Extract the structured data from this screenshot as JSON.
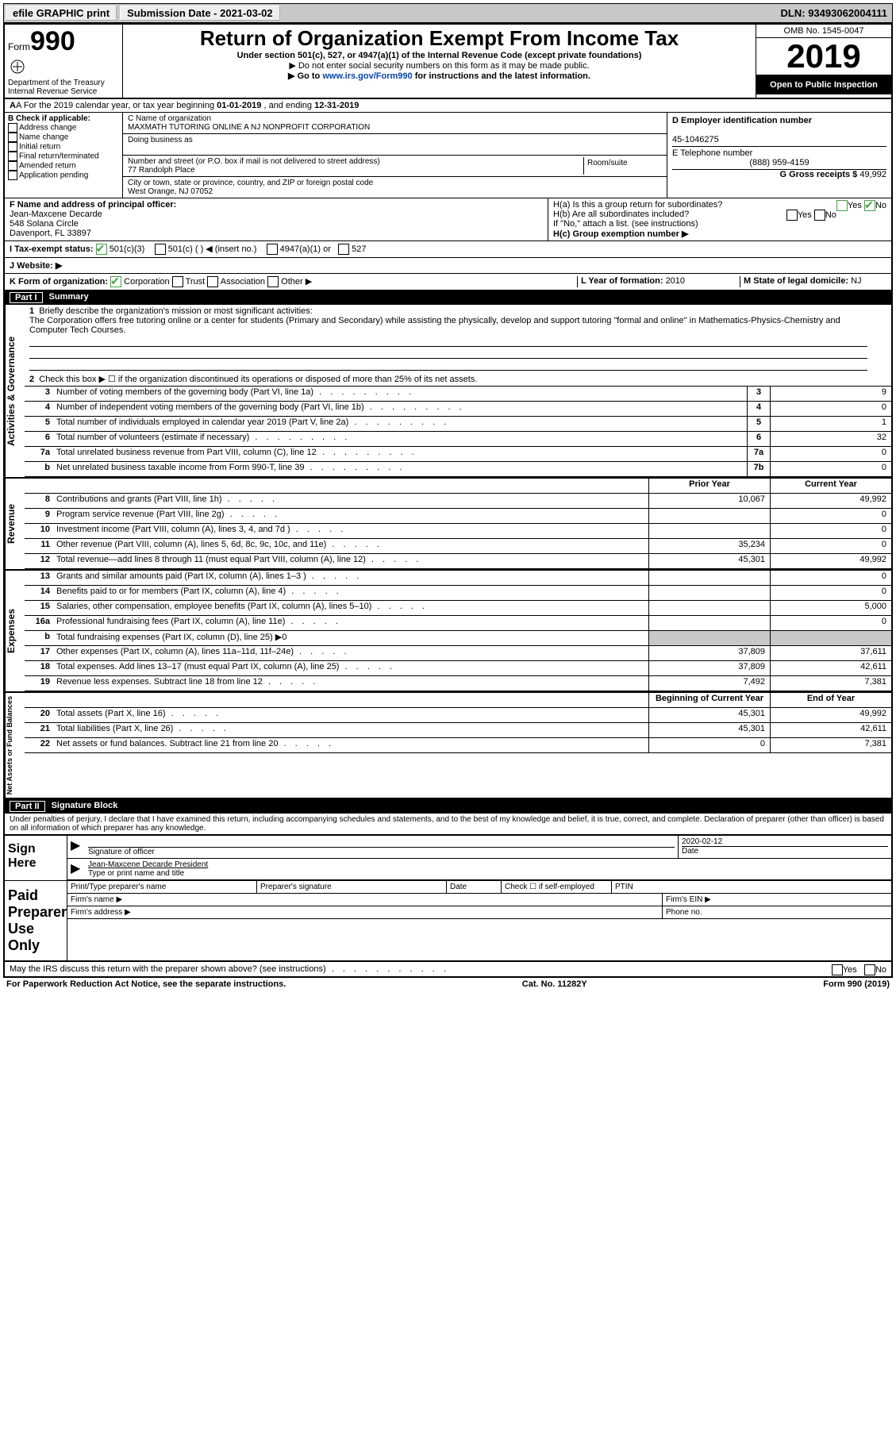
{
  "topbar": {
    "efile": "efile GRAPHIC print",
    "subdate_label": "Submission Date - ",
    "subdate": "2021-03-02",
    "dln_label": "DLN: ",
    "dln": "93493062004111"
  },
  "header": {
    "form_label": "Form",
    "form_number": "990",
    "dept1": "Department of the Treasury",
    "dept2": "Internal Revenue Service",
    "title": "Return of Organization Exempt From Income Tax",
    "under": "Under section 501(c), 527, or 4947(a)(1) of the Internal Revenue Code (except private foundations)",
    "note1": "▶ Do not enter social security numbers on this form as it may be made public.",
    "note2_pre": "▶ Go to ",
    "note2_link": "www.irs.gov/Form990",
    "note2_post": " for instructions and the latest information.",
    "omb": "OMB No. 1545-0047",
    "year": "2019",
    "open": "Open to Public Inspection"
  },
  "rowA": {
    "text_pre": "A For the 2019 calendar year, or tax year beginning ",
    "begin": "01-01-2019",
    "mid": " , and ending ",
    "end": "12-31-2019"
  },
  "B": {
    "label": "B Check if applicable:",
    "opts": [
      "Address change",
      "Name change",
      "Initial return",
      "Final return/terminated",
      "Amended return",
      "Application pending"
    ]
  },
  "C": {
    "name_label": "C Name of organization",
    "name": "MAXMATH TUTORING ONLINE A NJ NONPROFIT CORPORATION",
    "dba_label": "Doing business as",
    "addr_label": "Number and street (or P.O. box if mail is not delivered to street address)",
    "room_label": "Room/suite",
    "addr": "77 Randolph Place",
    "city_label": "City or town, state or province, country, and ZIP or foreign postal code",
    "city": "West Orange, NJ  07052"
  },
  "D": {
    "label": "D Employer identification number",
    "value": "45-1046275",
    "E_label": "E Telephone number",
    "E_value": "(888) 959-4159",
    "G_label": "G Gross receipts $ ",
    "G_value": "49,992"
  },
  "F": {
    "label": "F  Name and address of principal officer:",
    "l1": "Jean-Maxcene Decarde",
    "l2": "548 Solana Circle",
    "l3": "Davenport, FL  33897"
  },
  "H": {
    "a": "H(a)  Is this a group return for subordinates?",
    "a_yes": "Yes",
    "a_no": "No",
    "b": "H(b)  Are all subordinates included?",
    "b_note": "If \"No,\" attach a list. (see instructions)",
    "c": "H(c)  Group exemption number ▶"
  },
  "I": {
    "label": "I  Tax-exempt status:",
    "o1": "501(c)(3)",
    "o2": "501(c) (  ) ◀ (insert no.)",
    "o3": "4947(a)(1) or",
    "o4": "527"
  },
  "J": {
    "label": "J  Website: ▶"
  },
  "K": {
    "label": "K Form of organization:",
    "o1": "Corporation",
    "o2": "Trust",
    "o3": "Association",
    "o4": "Other ▶"
  },
  "L": {
    "label": "L Year of formation: ",
    "value": "2010"
  },
  "M": {
    "label": "M State of legal domicile: ",
    "value": "NJ"
  },
  "part1": {
    "label": "Part I",
    "title": "Summary",
    "l1_label": "1",
    "l1_text": "Briefly describe the organization's mission or most significant activities:",
    "mission": "The Corporation offers free tutoring online or a center for students (Primary and Secondary) while assisting the physically, develop and support tutoring \"formal and online\" in Mathematics-Physics-Chemistry and Computer Tech Courses.",
    "l2": "Check this box ▶ ☐  if the organization discontinued its operations or disposed of more than 25% of its net assets.",
    "vlabel1": "Activities & Governance",
    "vlabel2": "Revenue",
    "vlabel3": "Expenses",
    "vlabel4": "Net Assets or Fund Balances",
    "rows_ag": [
      {
        "n": "3",
        "d": "Number of voting members of the governing body (Part VI, line 1a)",
        "b": "3",
        "v": "9"
      },
      {
        "n": "4",
        "d": "Number of independent voting members of the governing body (Part VI, line 1b)",
        "b": "4",
        "v": "0"
      },
      {
        "n": "5",
        "d": "Total number of individuals employed in calendar year 2019 (Part V, line 2a)",
        "b": "5",
        "v": "1"
      },
      {
        "n": "6",
        "d": "Total number of volunteers (estimate if necessary)",
        "b": "6",
        "v": "32"
      },
      {
        "n": "7a",
        "d": "Total unrelated business revenue from Part VIII, column (C), line 12",
        "b": "7a",
        "v": "0"
      },
      {
        "n": "b",
        "d": "Net unrelated business taxable income from Form 990-T, line 39",
        "b": "7b",
        "v": "0"
      }
    ],
    "hdr_prior": "Prior Year",
    "hdr_curr": "Current Year",
    "rows_rev": [
      {
        "n": "8",
        "d": "Contributions and grants (Part VIII, line 1h)",
        "p": "10,067",
        "c": "49,992"
      },
      {
        "n": "9",
        "d": "Program service revenue (Part VIII, line 2g)",
        "p": "",
        "c": "0"
      },
      {
        "n": "10",
        "d": "Investment income (Part VIII, column (A), lines 3, 4, and 7d )",
        "p": "",
        "c": "0"
      },
      {
        "n": "11",
        "d": "Other revenue (Part VIII, column (A), lines 5, 6d, 8c, 9c, 10c, and 11e)",
        "p": "35,234",
        "c": "0"
      },
      {
        "n": "12",
        "d": "Total revenue—add lines 8 through 11 (must equal Part VIII, column (A), line 12)",
        "p": "45,301",
        "c": "49,992"
      }
    ],
    "rows_exp": [
      {
        "n": "13",
        "d": "Grants and similar amounts paid (Part IX, column (A), lines 1–3 )",
        "p": "",
        "c": "0"
      },
      {
        "n": "14",
        "d": "Benefits paid to or for members (Part IX, column (A), line 4)",
        "p": "",
        "c": "0"
      },
      {
        "n": "15",
        "d": "Salaries, other compensation, employee benefits (Part IX, column (A), lines 5–10)",
        "p": "",
        "c": "5,000"
      },
      {
        "n": "16a",
        "d": "Professional fundraising fees (Part IX, column (A), line 11e)",
        "p": "",
        "c": "0"
      },
      {
        "n": "b",
        "d": "Total fundraising expenses (Part IX, column (D), line 25) ▶0",
        "shade": true
      },
      {
        "n": "17",
        "d": "Other expenses (Part IX, column (A), lines 11a–11d, 11f–24e)",
        "p": "37,809",
        "c": "37,611"
      },
      {
        "n": "18",
        "d": "Total expenses. Add lines 13–17 (must equal Part IX, column (A), line 25)",
        "p": "37,809",
        "c": "42,611"
      },
      {
        "n": "19",
        "d": "Revenue less expenses. Subtract line 18 from line 12",
        "p": "7,492",
        "c": "7,381"
      }
    ],
    "hdr_boy": "Beginning of Current Year",
    "hdr_eoy": "End of Year",
    "rows_net": [
      {
        "n": "20",
        "d": "Total assets (Part X, line 16)",
        "p": "45,301",
        "c": "49,992"
      },
      {
        "n": "21",
        "d": "Total liabilities (Part X, line 26)",
        "p": "45,301",
        "c": "42,611"
      },
      {
        "n": "22",
        "d": "Net assets or fund balances. Subtract line 21 from line 20",
        "p": "0",
        "c": "7,381"
      }
    ]
  },
  "part2": {
    "label": "Part II",
    "title": "Signature Block",
    "perjury": "Under penalties of perjury, I declare that I have examined this return, including accompanying schedules and statements, and to the best of my knowledge and belief, it is true, correct, and complete. Declaration of preparer (other than officer) is based on all information of which preparer has any knowledge.",
    "sign_here": "Sign Here",
    "sig_officer": "Signature of officer",
    "date_label": "Date",
    "date": "2020-02-12",
    "name_title": "Jean-Maxcene Decarde  President",
    "name_title_label": "Type or print name and title",
    "paid": "Paid Preparer Use Only",
    "pp_name": "Print/Type preparer's name",
    "pp_sig": "Preparer's signature",
    "pp_date": "Date",
    "pp_check": "Check ☐ if self-employed",
    "pp_ptin": "PTIN",
    "firm_name": "Firm's name   ▶",
    "firm_ein": "Firm's EIN ▶",
    "firm_addr": "Firm's address ▶",
    "phone": "Phone no.",
    "discuss": "May the IRS discuss this return with the preparer shown above? (see instructions)",
    "yes": "Yes",
    "no": "No"
  },
  "footer": {
    "l": "For Paperwork Reduction Act Notice, see the separate instructions.",
    "m": "Cat. No. 11282Y",
    "r": "Form 990 (2019)"
  }
}
